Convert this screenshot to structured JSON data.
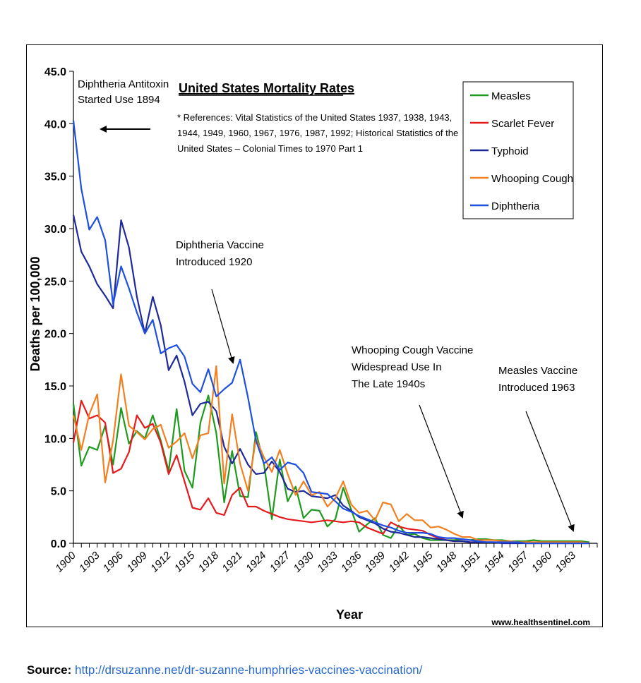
{
  "chart_data": {
    "type": "line",
    "title": "United States Mortality Rates",
    "references": [
      "* References: Vital Statistics of the United States 1937, 1938, 1943,",
      "1944, 1949, 1960, 1967, 1976, 1987, 1992; Historical Statistics of the",
      "United States – Colonial Times to 1970 Part 1"
    ],
    "xlabel": "Year",
    "ylabel": "Deaths per 100,000",
    "xlim": [
      1900,
      1966
    ],
    "ylim": [
      0,
      45
    ],
    "yticks": [
      "0.0",
      "5.0",
      "10.0",
      "15.0",
      "20.0",
      "25.0",
      "30.0",
      "35.0",
      "40.0",
      "45.0"
    ],
    "xticklabels": [
      "1900",
      "1903",
      "1906",
      "1909",
      "1912",
      "1915",
      "1918",
      "1921",
      "1924",
      "1927",
      "1930",
      "1933",
      "1936",
      "1939",
      "1942",
      "1945",
      "1948",
      "1951",
      "1954",
      "1957",
      "1960",
      "1963"
    ],
    "legend_position": "top-right",
    "series": [
      {
        "name": "Measles",
        "color": "#1e9b1e",
        "x": [
          1900,
          1901,
          1902,
          1903,
          1904,
          1905,
          1906,
          1907,
          1908,
          1909,
          1910,
          1911,
          1912,
          1913,
          1914,
          1915,
          1916,
          1917,
          1918,
          1919,
          1920,
          1921,
          1922,
          1923,
          1924,
          1925,
          1926,
          1927,
          1928,
          1929,
          1930,
          1931,
          1932,
          1933,
          1934,
          1935,
          1936,
          1937,
          1938,
          1939,
          1940,
          1941,
          1942,
          1943,
          1944,
          1945,
          1946,
          1947,
          1948,
          1949,
          1950,
          1951,
          1952,
          1953,
          1954,
          1955,
          1956,
          1957,
          1958,
          1959,
          1960,
          1961,
          1962,
          1963,
          1964,
          1965
        ],
        "y": [
          13.3,
          7.4,
          9.2,
          8.9,
          11.2,
          7.5,
          12.9,
          9.5,
          10.7,
          10.0,
          12.2,
          9.8,
          6.9,
          12.8,
          6.9,
          5.3,
          11.5,
          14.1,
          10.5,
          3.9,
          8.8,
          4.5,
          4.4,
          10.6,
          7.6,
          2.3,
          8.0,
          4.0,
          5.4,
          2.4,
          3.2,
          3.1,
          1.6,
          2.3,
          5.3,
          3.2,
          1.1,
          1.8,
          2.4,
          0.8,
          0.5,
          1.7,
          0.8,
          0.9,
          0.5,
          0.3,
          0.3,
          0.3,
          0.3,
          0.4,
          0.3,
          0.4,
          0.4,
          0.3,
          0.3,
          0.2,
          0.2,
          0.2,
          0.3,
          0.2,
          0.2,
          0.2,
          0.2,
          0.2,
          0.2,
          0.1
        ]
      },
      {
        "name": "Scarlet Fever",
        "color": "#e41a1c",
        "x": [
          1900,
          1901,
          1902,
          1903,
          1904,
          1905,
          1906,
          1907,
          1908,
          1909,
          1910,
          1911,
          1912,
          1913,
          1914,
          1915,
          1916,
          1917,
          1918,
          1919,
          1920,
          1921,
          1922,
          1923,
          1924,
          1925,
          1926,
          1927,
          1928,
          1929,
          1930,
          1931,
          1932,
          1933,
          1934,
          1935,
          1936,
          1937,
          1938,
          1939,
          1940,
          1941,
          1942,
          1943,
          1944,
          1945,
          1946,
          1947,
          1948,
          1949,
          1950,
          1951,
          1952,
          1953,
          1954,
          1955,
          1956,
          1957,
          1958,
          1959,
          1960,
          1961,
          1962,
          1963,
          1964,
          1965
        ],
        "y": [
          9.6,
          13.6,
          11.9,
          12.2,
          11.5,
          6.7,
          7.1,
          8.7,
          12.2,
          11.0,
          11.4,
          9.6,
          6.6,
          8.4,
          5.9,
          3.4,
          3.2,
          4.3,
          2.9,
          2.7,
          4.6,
          5.3,
          3.5,
          3.5,
          3.1,
          2.8,
          2.5,
          2.3,
          2.2,
          2.1,
          2.0,
          2.1,
          2.2,
          2.1,
          2.0,
          2.1,
          2.0,
          1.5,
          1.2,
          0.9,
          2.0,
          1.6,
          1.4,
          1.3,
          1.2,
          0.8,
          0.5,
          0.3,
          0.2,
          0.2,
          0.1,
          0.1,
          0.1,
          0.1,
          0.1,
          0.1,
          0.1,
          0.1,
          0.1,
          0.1,
          0.1,
          0.1,
          0.1,
          0.1,
          0.1,
          0.0
        ]
      },
      {
        "name": "Typhoid",
        "color": "#1f2a9a",
        "x": [
          1900,
          1901,
          1902,
          1903,
          1904,
          1905,
          1906,
          1907,
          1908,
          1909,
          1910,
          1911,
          1912,
          1913,
          1914,
          1915,
          1916,
          1917,
          1918,
          1919,
          1920,
          1921,
          1922,
          1923,
          1924,
          1925,
          1926,
          1927,
          1928,
          1929,
          1930,
          1931,
          1932,
          1933,
          1934,
          1935,
          1936,
          1937,
          1938,
          1939,
          1940,
          1941,
          1942,
          1943,
          1944,
          1945,
          1946,
          1947,
          1948,
          1949,
          1950,
          1951,
          1952,
          1953,
          1954,
          1955,
          1956,
          1957,
          1958,
          1959,
          1960,
          1961,
          1962,
          1963,
          1964,
          1965
        ],
        "y": [
          31.3,
          27.8,
          26.4,
          24.7,
          23.6,
          22.4,
          30.8,
          28.2,
          23.5,
          20.0,
          23.5,
          20.8,
          16.5,
          17.9,
          15.4,
          12.2,
          13.3,
          13.5,
          12.6,
          9.2,
          7.6,
          9.0,
          7.5,
          6.6,
          6.7,
          7.8,
          6.8,
          5.2,
          4.9,
          5.0,
          4.5,
          4.4,
          4.3,
          4.6,
          3.6,
          3.1,
          2.5,
          2.2,
          1.9,
          1.4,
          1.1,
          1.0,
          0.8,
          0.6,
          0.6,
          0.5,
          0.4,
          0.3,
          0.2,
          0.2,
          0.1,
          0.1,
          0.1,
          0.1,
          0.0,
          0.0,
          0.0,
          0.0,
          0.0,
          0.0,
          0.0,
          0.0,
          0.0,
          0.0,
          0.0,
          0.0
        ]
      },
      {
        "name": "Whooping Cough",
        "color": "#f28020",
        "x": [
          1900,
          1901,
          1902,
          1903,
          1904,
          1905,
          1906,
          1907,
          1908,
          1909,
          1910,
          1911,
          1912,
          1913,
          1914,
          1915,
          1916,
          1917,
          1918,
          1919,
          1920,
          1921,
          1922,
          1923,
          1924,
          1925,
          1926,
          1927,
          1928,
          1929,
          1930,
          1931,
          1932,
          1933,
          1934,
          1935,
          1936,
          1937,
          1938,
          1939,
          1940,
          1941,
          1942,
          1943,
          1944,
          1945,
          1946,
          1947,
          1948,
          1949,
          1950,
          1951,
          1952,
          1953,
          1954,
          1955,
          1956,
          1957,
          1958,
          1959,
          1960,
          1961,
          1962,
          1963,
          1964,
          1965
        ],
        "y": [
          12.2,
          8.9,
          12.3,
          14.2,
          5.8,
          9.8,
          16.1,
          11.2,
          10.6,
          9.9,
          10.9,
          11.3,
          9.1,
          9.7,
          10.5,
          8.1,
          10.3,
          10.5,
          16.9,
          5.7,
          12.3,
          7.6,
          5.0,
          10.0,
          8.2,
          6.8,
          8.9,
          6.6,
          4.6,
          5.9,
          4.6,
          4.9,
          3.5,
          4.3,
          5.9,
          3.7,
          2.9,
          3.1,
          2.2,
          3.9,
          3.7,
          2.1,
          2.8,
          2.2,
          2.2,
          1.5,
          1.6,
          1.3,
          0.9,
          0.6,
          0.6,
          0.3,
          0.3,
          0.3,
          0.2,
          0.2,
          0.1,
          0.1,
          0.1,
          0.1,
          0.1,
          0.1,
          0.1,
          0.1,
          0.1,
          0.0
        ]
      },
      {
        "name": "Diphtheria",
        "color": "#1e4fe0",
        "x": [
          1900,
          1901,
          1902,
          1903,
          1904,
          1905,
          1906,
          1907,
          1908,
          1909,
          1910,
          1911,
          1912,
          1913,
          1914,
          1915,
          1916,
          1917,
          1918,
          1919,
          1920,
          1921,
          1922,
          1923,
          1924,
          1925,
          1926,
          1927,
          1928,
          1929,
          1930,
          1931,
          1932,
          1933,
          1934,
          1935,
          1936,
          1937,
          1938,
          1939,
          1940,
          1941,
          1942,
          1943,
          1944,
          1945,
          1946,
          1947,
          1948,
          1949,
          1950,
          1951,
          1952,
          1953,
          1954,
          1955,
          1956,
          1957,
          1958,
          1959,
          1960,
          1961,
          1962,
          1963,
          1964,
          1965
        ],
        "y": [
          40.3,
          33.8,
          29.9,
          31.1,
          28.9,
          22.8,
          26.4,
          24.3,
          22.0,
          20.0,
          21.3,
          18.1,
          18.6,
          18.9,
          17.8,
          15.2,
          14.4,
          16.6,
          14.0,
          14.7,
          15.3,
          17.5,
          13.9,
          9.8,
          7.6,
          8.2,
          7.0,
          7.7,
          7.5,
          6.7,
          4.9,
          4.8,
          4.7,
          4.0,
          3.3,
          3.0,
          2.6,
          2.3,
          2.0,
          1.7,
          1.5,
          1.2,
          1.0,
          1.0,
          1.0,
          0.9,
          0.6,
          0.5,
          0.5,
          0.4,
          0.3,
          0.2,
          0.1,
          0.1,
          0.1,
          0.1,
          0.1,
          0.0,
          0.0,
          0.0,
          0.0,
          0.0,
          0.0,
          0.0,
          0.0,
          0.0
        ]
      }
    ],
    "annotations": [
      {
        "lines": [
          "Diphtheria Antitoxin",
          "Started Use 1894"
        ]
      },
      {
        "lines": [
          "Diphtheria Vaccine",
          "Introduced 1920"
        ]
      },
      {
        "lines": [
          "Whooping Cough Vaccine",
          "Widespread Use In",
          "The Late 1940s"
        ]
      },
      {
        "lines": [
          "Measles Vaccine",
          "Introduced 1963"
        ]
      }
    ],
    "watermark": "www.healthsentinel.com"
  },
  "source": {
    "label": "Source:",
    "url": "http://drsuzanne.net/dr-suzanne-humphries-vaccines-vaccination/"
  }
}
